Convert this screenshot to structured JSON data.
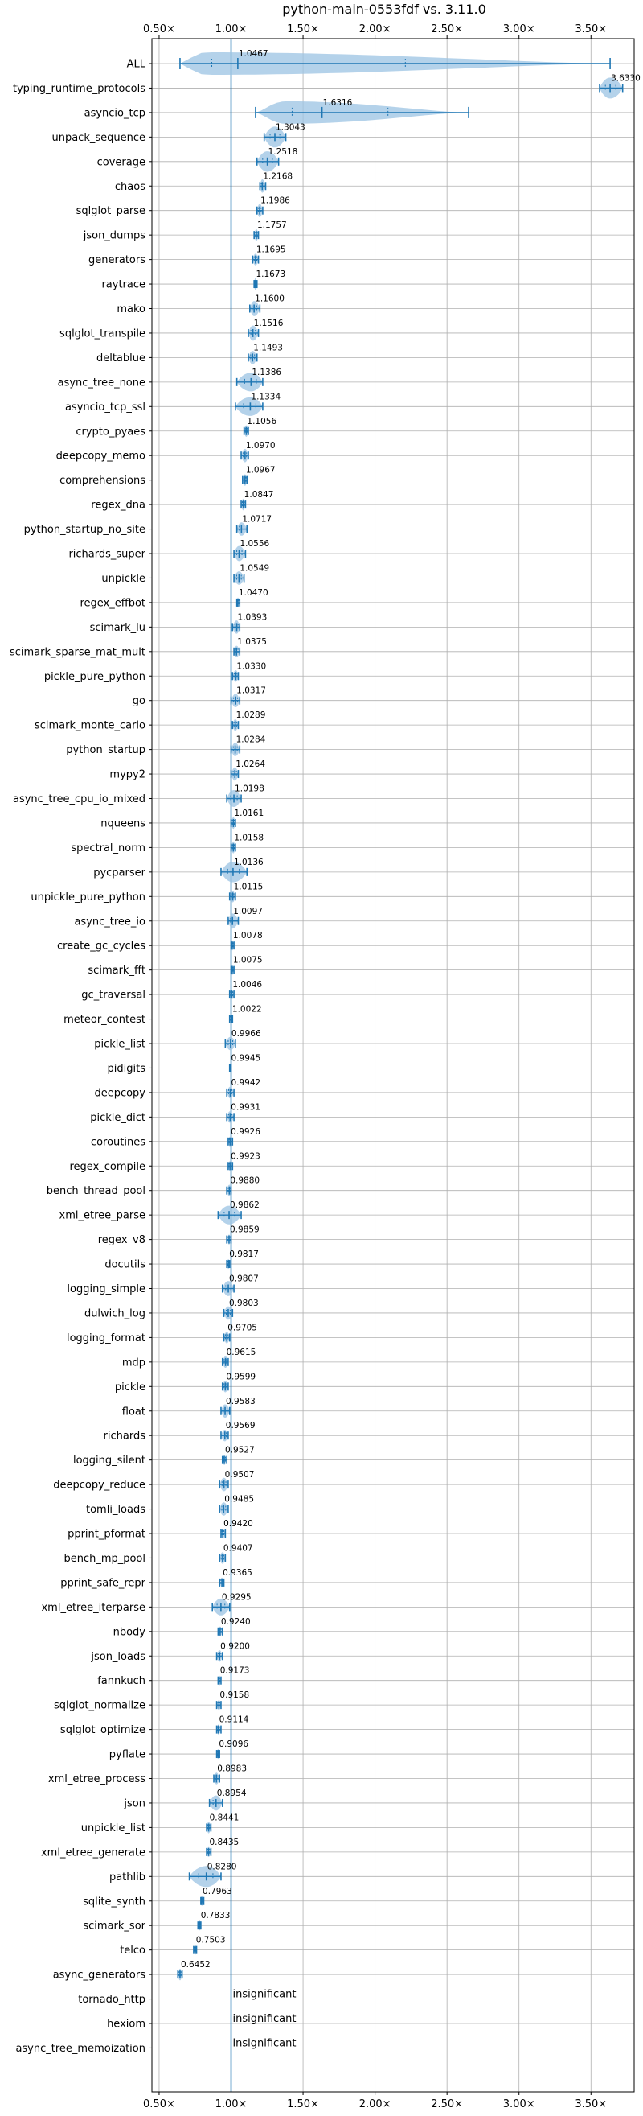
{
  "chart_data": {
    "type": "violin",
    "title": "python-main-0553fdf vs. 3.11.0",
    "xlabel": "",
    "ylabel": "",
    "xlim": [
      0.45,
      3.8
    ],
    "x_ticks": [
      0.5,
      1.0,
      1.5,
      2.0,
      2.5,
      3.0,
      3.5
    ],
    "x_tick_labels": [
      "0.50×",
      "1.00×",
      "1.50×",
      "2.00×",
      "2.50×",
      "3.00×",
      "3.50×"
    ],
    "reference_line": 1.0,
    "grid": true,
    "colors": {
      "violin": "#9bc3e3",
      "line": "#1f77b4",
      "grid": "#b0b0b0"
    },
    "benchmarks": [
      {
        "name": "ALL",
        "value": 1.0467,
        "label": "1.0467",
        "min": 0.6452,
        "max": 3.633,
        "spread": 0.18
      },
      {
        "name": "typing_runtime_protocols",
        "value": 3.633,
        "label": "3.6330",
        "min": 3.56,
        "max": 3.72,
        "spread": 0.08
      },
      {
        "name": "asyncio_tcp",
        "value": 1.6316,
        "label": "1.6316",
        "min": 1.17,
        "max": 2.65,
        "spread": 0.55
      },
      {
        "name": "unpack_sequence",
        "value": 1.3043,
        "label": "1.3043",
        "min": 1.23,
        "max": 1.38,
        "spread": 0.08
      },
      {
        "name": "coverage",
        "value": 1.2518,
        "label": "1.2518",
        "min": 1.18,
        "max": 1.33,
        "spread": 0.07
      },
      {
        "name": "chaos",
        "value": 1.2168,
        "label": "1.2168",
        "min": 1.2,
        "max": 1.24,
        "spread": 0.03
      },
      {
        "name": "sqlglot_parse",
        "value": 1.1986,
        "label": "1.1986",
        "min": 1.18,
        "max": 1.22,
        "spread": 0.03
      },
      {
        "name": "json_dumps",
        "value": 1.1757,
        "label": "1.1757",
        "min": 1.16,
        "max": 1.19,
        "spread": 0.02
      },
      {
        "name": "generators",
        "value": 1.1695,
        "label": "1.1695",
        "min": 1.15,
        "max": 1.19,
        "spread": 0.02
      },
      {
        "name": "raytrace",
        "value": 1.1673,
        "label": "1.1673",
        "min": 1.16,
        "max": 1.18,
        "spread": 0.02
      },
      {
        "name": "mako",
        "value": 1.16,
        "label": "1.1600",
        "min": 1.13,
        "max": 1.2,
        "spread": 0.04
      },
      {
        "name": "sqlglot_transpile",
        "value": 1.1516,
        "label": "1.1516",
        "min": 1.12,
        "max": 1.19,
        "spread": 0.04
      },
      {
        "name": "deltablue",
        "value": 1.1493,
        "label": "1.1493",
        "min": 1.12,
        "max": 1.18,
        "spread": 0.03
      },
      {
        "name": "async_tree_none",
        "value": 1.1386,
        "label": "1.1386",
        "min": 1.04,
        "max": 1.22,
        "spread": 0.06
      },
      {
        "name": "asyncio_tcp_ssl",
        "value": 1.1334,
        "label": "1.1334",
        "min": 1.03,
        "max": 1.22,
        "spread": 0.06
      },
      {
        "name": "crypto_pyaes",
        "value": 1.1056,
        "label": "1.1056",
        "min": 1.09,
        "max": 1.12,
        "spread": 0.02
      },
      {
        "name": "deepcopy_memo",
        "value": 1.097,
        "label": "1.0970",
        "min": 1.07,
        "max": 1.12,
        "spread": 0.03
      },
      {
        "name": "comprehensions",
        "value": 1.0967,
        "label": "1.0967",
        "min": 1.08,
        "max": 1.11,
        "spread": 0.02
      },
      {
        "name": "regex_dna",
        "value": 1.0847,
        "label": "1.0847",
        "min": 1.07,
        "max": 1.1,
        "spread": 0.02
      },
      {
        "name": "python_startup_no_site",
        "value": 1.0717,
        "label": "1.0717",
        "min": 1.04,
        "max": 1.11,
        "spread": 0.03
      },
      {
        "name": "richards_super",
        "value": 1.0556,
        "label": "1.0556",
        "min": 1.02,
        "max": 1.1,
        "spread": 0.04
      },
      {
        "name": "unpickle",
        "value": 1.0549,
        "label": "1.0549",
        "min": 1.02,
        "max": 1.09,
        "spread": 0.03
      },
      {
        "name": "regex_effbot",
        "value": 1.047,
        "label": "1.0470",
        "min": 1.04,
        "max": 1.06,
        "spread": 0.01
      },
      {
        "name": "scimark_lu",
        "value": 1.0393,
        "label": "1.0393",
        "min": 1.01,
        "max": 1.06,
        "spread": 0.03
      },
      {
        "name": "scimark_sparse_mat_mult",
        "value": 1.0375,
        "label": "1.0375",
        "min": 1.02,
        "max": 1.06,
        "spread": 0.02
      },
      {
        "name": "pickle_pure_python",
        "value": 1.033,
        "label": "1.0330",
        "min": 1.01,
        "max": 1.05,
        "spread": 0.02
      },
      {
        "name": "go",
        "value": 1.0317,
        "label": "1.0317",
        "min": 1.0,
        "max": 1.06,
        "spread": 0.03
      },
      {
        "name": "scimark_monte_carlo",
        "value": 1.0289,
        "label": "1.0289",
        "min": 1.01,
        "max": 1.05,
        "spread": 0.02
      },
      {
        "name": "python_startup",
        "value": 1.0284,
        "label": "1.0284",
        "min": 1.0,
        "max": 1.06,
        "spread": 0.03
      },
      {
        "name": "mypy2",
        "value": 1.0264,
        "label": "1.0264",
        "min": 1.0,
        "max": 1.05,
        "spread": 0.03
      },
      {
        "name": "async_tree_cpu_io_mixed",
        "value": 1.0198,
        "label": "1.0198",
        "min": 0.97,
        "max": 1.07,
        "spread": 0.05
      },
      {
        "name": "nqueens",
        "value": 1.0161,
        "label": "1.0161",
        "min": 1.0,
        "max": 1.03,
        "spread": 0.02
      },
      {
        "name": "spectral_norm",
        "value": 1.0158,
        "label": "1.0158",
        "min": 1.0,
        "max": 1.03,
        "spread": 0.02
      },
      {
        "name": "pycparser",
        "value": 1.0136,
        "label": "1.0136",
        "min": 0.93,
        "max": 1.11,
        "spread": 0.07
      },
      {
        "name": "unpickle_pure_python",
        "value": 1.0115,
        "label": "1.0115",
        "min": 0.99,
        "max": 1.03,
        "spread": 0.02
      },
      {
        "name": "async_tree_io",
        "value": 1.0097,
        "label": "1.0097",
        "min": 0.98,
        "max": 1.05,
        "spread": 0.04
      },
      {
        "name": "create_gc_cycles",
        "value": 1.0078,
        "label": "1.0078",
        "min": 1.0,
        "max": 1.02,
        "spread": 0.01
      },
      {
        "name": "scimark_fft",
        "value": 1.0075,
        "label": "1.0075",
        "min": 1.0,
        "max": 1.02,
        "spread": 0.01
      },
      {
        "name": "gc_traversal",
        "value": 1.0046,
        "label": "1.0046",
        "min": 0.99,
        "max": 1.02,
        "spread": 0.01
      },
      {
        "name": "meteor_contest",
        "value": 1.0022,
        "label": "1.0022",
        "min": 0.99,
        "max": 1.01,
        "spread": 0.01
      },
      {
        "name": "pickle_list",
        "value": 0.9966,
        "label": "0.9966",
        "min": 0.96,
        "max": 1.03,
        "spread": 0.03
      },
      {
        "name": "pidigits",
        "value": 0.9945,
        "label": "0.9945",
        "min": 0.99,
        "max": 1.0,
        "spread": 0.01
      },
      {
        "name": "deepcopy",
        "value": 0.9942,
        "label": "0.9942",
        "min": 0.97,
        "max": 1.02,
        "spread": 0.02
      },
      {
        "name": "pickle_dict",
        "value": 0.9931,
        "label": "0.9931",
        "min": 0.97,
        "max": 1.02,
        "spread": 0.02
      },
      {
        "name": "coroutines",
        "value": 0.9926,
        "label": "0.9926",
        "min": 0.98,
        "max": 1.01,
        "spread": 0.01
      },
      {
        "name": "regex_compile",
        "value": 0.9923,
        "label": "0.9923",
        "min": 0.98,
        "max": 1.01,
        "spread": 0.01
      },
      {
        "name": "bench_thread_pool",
        "value": 0.988,
        "label": "0.9880",
        "min": 0.97,
        "max": 1.0,
        "spread": 0.02
      },
      {
        "name": "xml_etree_parse",
        "value": 0.9862,
        "label": "0.9862",
        "min": 0.91,
        "max": 1.07,
        "spread": 0.06
      },
      {
        "name": "regex_v8",
        "value": 0.9859,
        "label": "0.9859",
        "min": 0.97,
        "max": 1.0,
        "spread": 0.01
      },
      {
        "name": "docutils",
        "value": 0.9817,
        "label": "0.9817",
        "min": 0.97,
        "max": 0.99,
        "spread": 0.01
      },
      {
        "name": "logging_simple",
        "value": 0.9807,
        "label": "0.9807",
        "min": 0.94,
        "max": 1.02,
        "spread": 0.04
      },
      {
        "name": "dulwich_log",
        "value": 0.9803,
        "label": "0.9803",
        "min": 0.95,
        "max": 1.01,
        "spread": 0.03
      },
      {
        "name": "logging_format",
        "value": 0.9705,
        "label": "0.9705",
        "min": 0.95,
        "max": 0.99,
        "spread": 0.02
      },
      {
        "name": "mdp",
        "value": 0.9615,
        "label": "0.9615",
        "min": 0.94,
        "max": 0.98,
        "spread": 0.02
      },
      {
        "name": "pickle",
        "value": 0.9599,
        "label": "0.9599",
        "min": 0.94,
        "max": 0.98,
        "spread": 0.02
      },
      {
        "name": "float",
        "value": 0.9583,
        "label": "0.9583",
        "min": 0.93,
        "max": 0.99,
        "spread": 0.03
      },
      {
        "name": "richards",
        "value": 0.9569,
        "label": "0.9569",
        "min": 0.93,
        "max": 0.98,
        "spread": 0.02
      },
      {
        "name": "logging_silent",
        "value": 0.9527,
        "label": "0.9527",
        "min": 0.94,
        "max": 0.97,
        "spread": 0.01
      },
      {
        "name": "deepcopy_reduce",
        "value": 0.9507,
        "label": "0.9507",
        "min": 0.92,
        "max": 0.98,
        "spread": 0.03
      },
      {
        "name": "tomli_loads",
        "value": 0.9485,
        "label": "0.9485",
        "min": 0.92,
        "max": 0.98,
        "spread": 0.03
      },
      {
        "name": "pprint_pformat",
        "value": 0.942,
        "label": "0.9420",
        "min": 0.93,
        "max": 0.96,
        "spread": 0.01
      },
      {
        "name": "bench_mp_pool",
        "value": 0.9407,
        "label": "0.9407",
        "min": 0.92,
        "max": 0.96,
        "spread": 0.02
      },
      {
        "name": "pprint_safe_repr",
        "value": 0.9365,
        "label": "0.9365",
        "min": 0.92,
        "max": 0.95,
        "spread": 0.01
      },
      {
        "name": "xml_etree_iterparse",
        "value": 0.9295,
        "label": "0.9295",
        "min": 0.87,
        "max": 0.99,
        "spread": 0.05
      },
      {
        "name": "nbody",
        "value": 0.924,
        "label": "0.9240",
        "min": 0.91,
        "max": 0.94,
        "spread": 0.01
      },
      {
        "name": "json_loads",
        "value": 0.92,
        "label": "0.9200",
        "min": 0.9,
        "max": 0.94,
        "spread": 0.02
      },
      {
        "name": "fannkuch",
        "value": 0.9173,
        "label": "0.9173",
        "min": 0.91,
        "max": 0.93,
        "spread": 0.01
      },
      {
        "name": "sqlglot_normalize",
        "value": 0.9158,
        "label": "0.9158",
        "min": 0.9,
        "max": 0.93,
        "spread": 0.01
      },
      {
        "name": "sqlglot_optimize",
        "value": 0.9114,
        "label": "0.9114",
        "min": 0.9,
        "max": 0.93,
        "spread": 0.01
      },
      {
        "name": "pyflate",
        "value": 0.9096,
        "label": "0.9096",
        "min": 0.9,
        "max": 0.92,
        "spread": 0.01
      },
      {
        "name": "xml_etree_process",
        "value": 0.8983,
        "label": "0.8983",
        "min": 0.88,
        "max": 0.92,
        "spread": 0.02
      },
      {
        "name": "json",
        "value": 0.8954,
        "label": "0.8954",
        "min": 0.85,
        "max": 0.94,
        "spread": 0.04
      },
      {
        "name": "unpickle_list",
        "value": 0.8441,
        "label": "0.8441",
        "min": 0.83,
        "max": 0.86,
        "spread": 0.02
      },
      {
        "name": "xml_etree_generate",
        "value": 0.8435,
        "label": "0.8435",
        "min": 0.83,
        "max": 0.86,
        "spread": 0.01
      },
      {
        "name": "pathlib",
        "value": 0.828,
        "label": "0.8280",
        "min": 0.71,
        "max": 0.93,
        "spread": 0.09
      },
      {
        "name": "sqlite_synth",
        "value": 0.7963,
        "label": "0.7963",
        "min": 0.79,
        "max": 0.81,
        "spread": 0.01
      },
      {
        "name": "scimark_sor",
        "value": 0.7833,
        "label": "0.7833",
        "min": 0.77,
        "max": 0.79,
        "spread": 0.01
      },
      {
        "name": "telco",
        "value": 0.7503,
        "label": "0.7503",
        "min": 0.74,
        "max": 0.76,
        "spread": 0.01
      },
      {
        "name": "async_generators",
        "value": 0.6452,
        "label": "0.6452",
        "min": 0.63,
        "max": 0.66,
        "spread": 0.02
      },
      {
        "name": "tornado_http",
        "value": null,
        "label": "insignificant",
        "min": null,
        "max": null,
        "spread": 0
      },
      {
        "name": "hexiom",
        "value": null,
        "label": "insignificant",
        "min": null,
        "max": null,
        "spread": 0
      },
      {
        "name": "async_tree_memoization",
        "value": null,
        "label": "insignificant",
        "min": null,
        "max": null,
        "spread": 0
      }
    ]
  }
}
